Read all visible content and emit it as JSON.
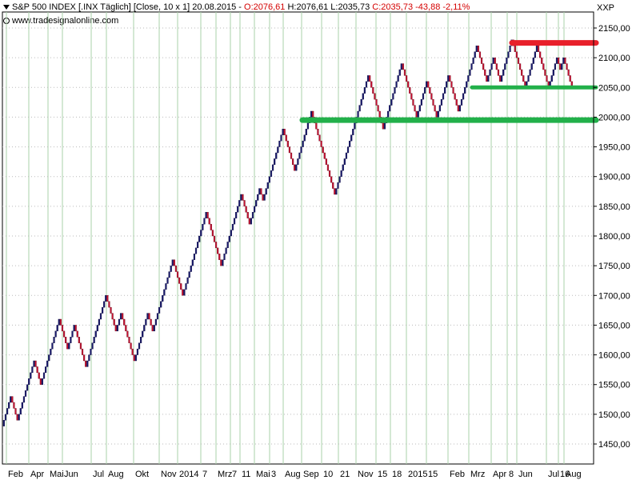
{
  "header": {
    "symbol_info": "S&P 500 INDEX [.INX  Täglich] [Close, 10 x 1] 20.08.2015 - ",
    "open": "O:2076,61",
    "high": "H:2076,61",
    "low": "L:2035,73",
    "close_change": "C:2035,73 -43,88 -2,11%",
    "website": "www.tradesignalonline.com",
    "symbol_short": "XXP"
  },
  "colors": {
    "up_box": "#1a1a6e",
    "down_box": "#cc1133",
    "resistance_line": "#e8202a",
    "support_line": "#22b04a",
    "grid": "#a8d0a8"
  },
  "chart_data": {
    "type": "line",
    "chart_style": "renko",
    "box_size": 10,
    "ylim": [
      1420,
      2170
    ],
    "yticks": [
      "2150,00",
      "2100,00",
      "2050,00",
      "2000,00",
      "1950,00",
      "1900,00",
      "1850,00",
      "1800,00",
      "1750,00",
      "1700,00",
      "1650,00",
      "1600,00",
      "1550,00",
      "1500,00",
      "1450,00"
    ],
    "ytick_values": [
      2150,
      2100,
      2050,
      2000,
      1950,
      1900,
      1850,
      1800,
      1750,
      1700,
      1650,
      1600,
      1550,
      1500,
      1450
    ],
    "xticks": [
      "Feb",
      "Apr",
      "Mai",
      "Jun",
      "Jul",
      "Aug",
      "Okt",
      "Nov",
      "2014",
      "7",
      "Mrz",
      "7",
      "11",
      "Mai",
      "3",
      "Aug",
      "Sep",
      "10",
      "21",
      "Nov",
      "15",
      "18",
      "2015",
      "15",
      "Feb",
      "Mrz",
      "Apr",
      "8",
      "Jun",
      "Jul",
      "16",
      "Aug"
    ],
    "swing_points": [
      1480,
      1530,
      1490,
      1590,
      1550,
      1660,
      1610,
      1650,
      1580,
      1700,
      1640,
      1670,
      1590,
      1670,
      1640,
      1760,
      1700,
      1840,
      1750,
      1870,
      1820,
      1880,
      1860,
      1980,
      1910,
      2010,
      1870,
      2070,
      1980,
      2090,
      2000,
      2060,
      2000,
      2070,
      2010,
      2120,
      2060,
      2100,
      2060,
      2130,
      2050,
      2120,
      2050,
      2100,
      2080,
      2100,
      2050
    ],
    "horizontal_lines": [
      {
        "name": "resistance",
        "value": 2125,
        "from_x": "Apr",
        "to_x": "Aug",
        "color": "red"
      },
      {
        "name": "support",
        "value": 2050,
        "from_x": "Mrz",
        "to_x": "Aug",
        "color": "green"
      },
      {
        "name": "support",
        "value": 1995,
        "from_x": "Sep",
        "to_x": "Aug",
        "color": "green"
      }
    ],
    "grid": true
  }
}
